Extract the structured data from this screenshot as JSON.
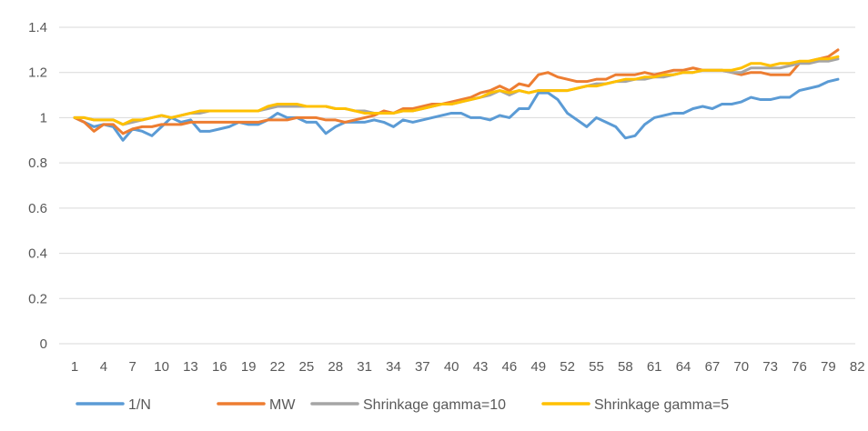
{
  "chart_data": {
    "type": "line",
    "title": "",
    "xlabel": "",
    "ylabel": "",
    "ylim": [
      0,
      1.4
    ],
    "yticks": [
      0,
      0.2,
      0.4,
      0.6,
      0.8,
      1,
      1.2,
      1.4
    ],
    "ytick_labels": [
      "0",
      "0.2",
      "0.4",
      "0.6",
      "0.8",
      "1",
      "1.2",
      "1.4"
    ],
    "xlim": [
      1,
      82
    ],
    "xticks": [
      1,
      4,
      7,
      10,
      13,
      16,
      19,
      22,
      25,
      28,
      31,
      34,
      37,
      40,
      43,
      46,
      49,
      52,
      55,
      58,
      61,
      64,
      67,
      70,
      73,
      76,
      79,
      82
    ],
    "xtick_labels": [
      "1",
      "4",
      "7",
      "10",
      "13",
      "16",
      "19",
      "22",
      "25",
      "28",
      "31",
      "34",
      "37",
      "40",
      "43",
      "46",
      "49",
      "52",
      "55",
      "58",
      "61",
      "64",
      "67",
      "70",
      "73",
      "76",
      "79",
      "82"
    ],
    "grid": true,
    "legend_position": "bottom",
    "series": [
      {
        "name": "1/N",
        "color": "#5B9BD5",
        "values": [
          1.0,
          0.98,
          0.96,
          0.97,
          0.96,
          0.9,
          0.95,
          0.94,
          0.92,
          0.96,
          1.0,
          0.98,
          0.99,
          0.94,
          0.94,
          0.95,
          0.96,
          0.98,
          0.97,
          0.97,
          0.99,
          1.02,
          1.0,
          1.0,
          0.98,
          0.98,
          0.93,
          0.96,
          0.98,
          0.98,
          0.98,
          0.99,
          0.98,
          0.96,
          0.99,
          0.98,
          0.99,
          1.0,
          1.01,
          1.02,
          1.02,
          1.0,
          1.0,
          0.99,
          1.01,
          1.0,
          1.04,
          1.04,
          1.11,
          1.11,
          1.08,
          1.02,
          0.99,
          0.96,
          1.0,
          0.98,
          0.96,
          0.91,
          0.92,
          0.97,
          1.0,
          1.01,
          1.02,
          1.02,
          1.04,
          1.05,
          1.04,
          1.06,
          1.06,
          1.07,
          1.09,
          1.08,
          1.08,
          1.09,
          1.09,
          1.12,
          1.13,
          1.14,
          1.16,
          1.17
        ]
      },
      {
        "name": "MW",
        "color": "#ED7D31",
        "values": [
          1.0,
          0.98,
          0.94,
          0.97,
          0.97,
          0.93,
          0.95,
          0.96,
          0.96,
          0.97,
          0.97,
          0.97,
          0.98,
          0.98,
          0.98,
          0.98,
          0.98,
          0.98,
          0.98,
          0.98,
          0.99,
          0.99,
          0.99,
          1.0,
          1.0,
          1.0,
          0.99,
          0.99,
          0.98,
          0.99,
          1.0,
          1.01,
          1.03,
          1.02,
          1.04,
          1.04,
          1.05,
          1.06,
          1.06,
          1.07,
          1.08,
          1.09,
          1.11,
          1.12,
          1.14,
          1.12,
          1.15,
          1.14,
          1.19,
          1.2,
          1.18,
          1.17,
          1.16,
          1.16,
          1.17,
          1.17,
          1.19,
          1.19,
          1.19,
          1.2,
          1.19,
          1.2,
          1.21,
          1.21,
          1.22,
          1.21,
          1.21,
          1.21,
          1.2,
          1.19,
          1.2,
          1.2,
          1.19,
          1.19,
          1.19,
          1.24,
          1.25,
          1.26,
          1.27,
          1.3
        ]
      },
      {
        "name": "Shrinkage gamma=10",
        "color": "#A5A5A5",
        "values": [
          1.0,
          1.0,
          0.99,
          0.99,
          0.99,
          0.97,
          0.98,
          0.99,
          1.0,
          1.01,
          1.0,
          1.01,
          1.02,
          1.02,
          1.03,
          1.03,
          1.03,
          1.03,
          1.03,
          1.03,
          1.04,
          1.05,
          1.05,
          1.05,
          1.05,
          1.05,
          1.05,
          1.04,
          1.04,
          1.03,
          1.03,
          1.02,
          1.02,
          1.02,
          1.03,
          1.03,
          1.04,
          1.05,
          1.06,
          1.06,
          1.07,
          1.08,
          1.09,
          1.1,
          1.12,
          1.1,
          1.12,
          1.11,
          1.12,
          1.12,
          1.12,
          1.12,
          1.13,
          1.14,
          1.15,
          1.15,
          1.16,
          1.16,
          1.17,
          1.17,
          1.18,
          1.18,
          1.19,
          1.2,
          1.2,
          1.21,
          1.21,
          1.21,
          1.2,
          1.2,
          1.22,
          1.22,
          1.22,
          1.22,
          1.23,
          1.24,
          1.24,
          1.25,
          1.25,
          1.26
        ]
      },
      {
        "name": "Shrinkage gamma=5",
        "color": "#FFC000",
        "values": [
          1.0,
          1.0,
          0.99,
          0.99,
          0.99,
          0.97,
          0.99,
          0.99,
          1.0,
          1.01,
          1.0,
          1.01,
          1.02,
          1.03,
          1.03,
          1.03,
          1.03,
          1.03,
          1.03,
          1.03,
          1.05,
          1.06,
          1.06,
          1.06,
          1.05,
          1.05,
          1.05,
          1.04,
          1.04,
          1.03,
          1.02,
          1.02,
          1.02,
          1.02,
          1.03,
          1.03,
          1.04,
          1.05,
          1.06,
          1.06,
          1.07,
          1.08,
          1.09,
          1.11,
          1.12,
          1.11,
          1.12,
          1.11,
          1.12,
          1.12,
          1.12,
          1.12,
          1.13,
          1.14,
          1.14,
          1.15,
          1.16,
          1.17,
          1.17,
          1.18,
          1.18,
          1.19,
          1.19,
          1.2,
          1.2,
          1.21,
          1.21,
          1.21,
          1.21,
          1.22,
          1.24,
          1.24,
          1.23,
          1.24,
          1.24,
          1.25,
          1.25,
          1.26,
          1.26,
          1.27
        ]
      }
    ]
  }
}
